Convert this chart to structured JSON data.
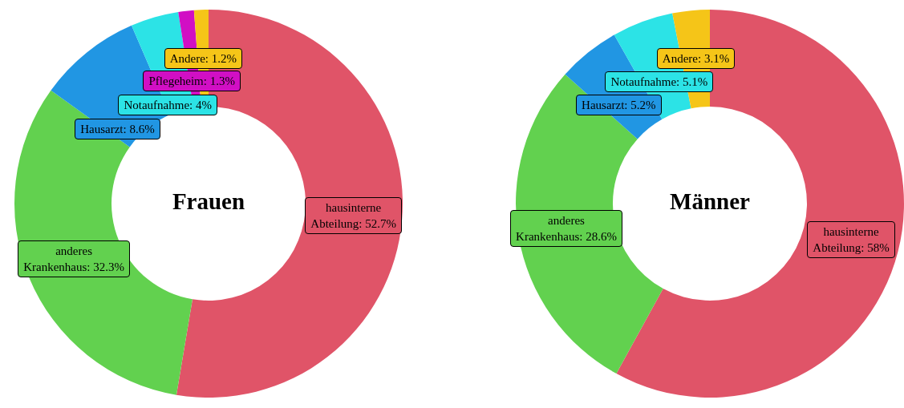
{
  "chart_data": [
    {
      "type": "donut",
      "title": "Frauen",
      "categories": [
        "hausinterne Abteilung",
        "anderes Krankenhaus",
        "Hausarzt",
        "Notaufnahme",
        "Pflegeheim",
        "Andere"
      ],
      "values": [
        52.7,
        32.3,
        8.6,
        4,
        1.3,
        1.2
      ],
      "value_labels": [
        "52.7%",
        "32.3%",
        "8.6%",
        "4%",
        "1.3%",
        "1.2%"
      ],
      "colors": [
        "#e05468",
        "#62d14f",
        "#2196e3",
        "#2ce3e6",
        "#d10fc4",
        "#f5c518"
      ]
    },
    {
      "type": "donut",
      "title": "Männer",
      "categories": [
        "hausinterne Abteilung",
        "anderes Krankenhaus",
        "Hausarzt",
        "Notaufnahme",
        "Andere"
      ],
      "values": [
        58,
        28.6,
        5.2,
        5.1,
        3.1
      ],
      "value_labels": [
        "58%",
        "28.6%",
        "5.2%",
        "5.1%",
        "3.1%"
      ],
      "colors": [
        "#e05468",
        "#62d14f",
        "#2196e3",
        "#2ce3e6",
        "#f5c518"
      ]
    }
  ]
}
